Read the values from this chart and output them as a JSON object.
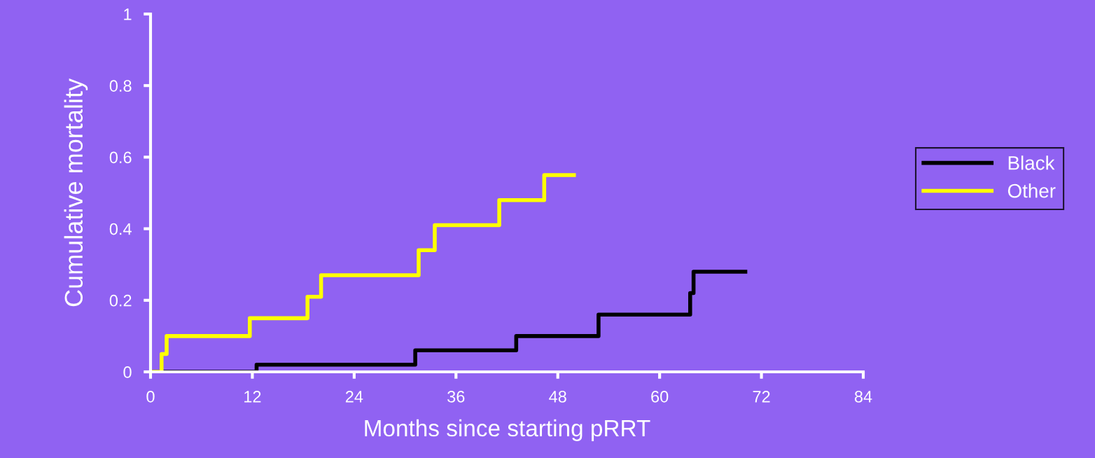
{
  "chart_data": {
    "type": "step",
    "xlabel": "Months since starting pRRT",
    "ylabel": "Cumulative mortality",
    "xlim": [
      0,
      84
    ],
    "xticks": [
      0,
      12,
      24,
      36,
      48,
      60,
      72,
      84
    ],
    "ylim": [
      0,
      1
    ],
    "yticks": [
      0,
      0.2,
      0.4,
      0.6,
      0.8,
      1
    ],
    "grid": false,
    "legend": "right",
    "marker": "none",
    "line_style": "solid",
    "series": [
      {
        "name": "Black",
        "color": "#000000",
        "x": [
          0,
          12.5,
          31.2,
          43.1,
          52.8,
          63.6,
          64.0,
          70.1
        ],
        "values": [
          0,
          0.02,
          0.06,
          0.1,
          0.16,
          0.22,
          0.28,
          0.28
        ]
      },
      {
        "name": "Other",
        "color": "#ffff00",
        "x": [
          0,
          1.3,
          1.9,
          11.7,
          18.5,
          20.1,
          31.6,
          33.5,
          41.1,
          46.4,
          49.9
        ],
        "values": [
          0,
          0.05,
          0.1,
          0.15,
          0.21,
          0.27,
          0.34,
          0.41,
          0.48,
          0.55,
          0.55
        ]
      }
    ]
  }
}
